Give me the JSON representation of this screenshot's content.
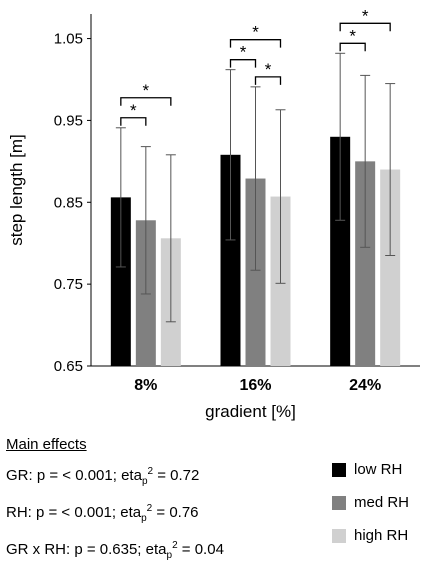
{
  "chart_data": {
    "type": "bar",
    "categories": [
      "8%",
      "16%",
      "24%"
    ],
    "series": [
      {
        "name": "low RH",
        "color": "#000000",
        "values": [
          0.856,
          0.908,
          0.93
        ],
        "err": [
          0.085,
          0.104,
          0.102
        ]
      },
      {
        "name": "med RH",
        "color": "#808080",
        "values": [
          0.828,
          0.879,
          0.9
        ],
        "err": [
          0.09,
          0.112,
          0.105
        ]
      },
      {
        "name": "high RH",
        "color": "#d0d0d0",
        "values": [
          0.806,
          0.857,
          0.89
        ],
        "err": [
          0.102,
          0.106,
          0.105
        ]
      }
    ],
    "ylabel": "step length [m]",
    "xlabel": "gradient [%]",
    "ylim": [
      0.65,
      1.08
    ],
    "yticks": [
      "0.65",
      "0.75",
      "0.85",
      "0.95",
      "1.05"
    ],
    "significance": [
      {
        "category": 0,
        "from": 0,
        "to": 1,
        "label": "*"
      },
      {
        "category": 0,
        "from": 0,
        "to": 2,
        "label": "*"
      },
      {
        "category": 1,
        "from": 0,
        "to": 1,
        "label": "*"
      },
      {
        "category": 1,
        "from": 0,
        "to": 2,
        "label": "*"
      },
      {
        "category": 1,
        "from": 1,
        "to": 2,
        "label": "*"
      },
      {
        "category": 2,
        "from": 0,
        "to": 1,
        "label": "*"
      },
      {
        "category": 2,
        "from": 0,
        "to": 2,
        "label": "*"
      }
    ]
  },
  "effects": {
    "title": "Main effects",
    "gr": {
      "label": "GR: p = < 0.001; eta",
      "sub": "p",
      "sup": "2",
      "value": " = 0.72"
    },
    "rh": {
      "label": "RH:  p = < 0.001; eta",
      "sub": "p",
      "sup": "2",
      "value": " = 0.76"
    },
    "grxrh": {
      "label": "GR x RH: p = 0.635; eta",
      "sub": "p",
      "sup": "2",
      "value": " = 0.04"
    }
  },
  "legend": [
    {
      "label": "low RH",
      "color": "#000000"
    },
    {
      "label": "med RH",
      "color": "#808080"
    },
    {
      "label": "high RH",
      "color": "#d0d0d0"
    }
  ]
}
